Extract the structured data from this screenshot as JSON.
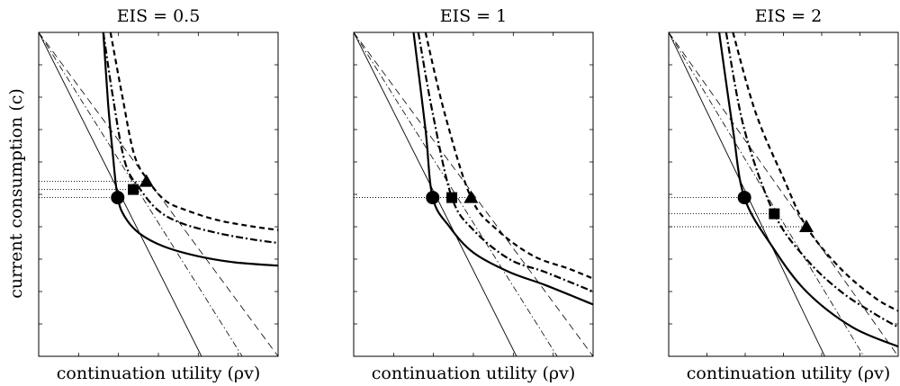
{
  "figure": {
    "ylabel": "current consumption (c)"
  },
  "chart_data": [
    {
      "type": "line",
      "title": "EIS = 0.5",
      "xlabel": "continuation utility (ρv)",
      "ylabel": "current consumption (c)",
      "xlim": [
        0,
        1
      ],
      "ylim": [
        0,
        1
      ],
      "grid": false,
      "indifference_curves": [
        {
          "style": "solid-thick",
          "points": [
            [
              0.27,
              1.0
            ],
            [
              0.29,
              0.78
            ],
            [
              0.31,
              0.62
            ],
            [
              0.33,
              0.49
            ],
            [
              0.36,
              0.43
            ],
            [
              0.42,
              0.38
            ],
            [
              0.52,
              0.34
            ],
            [
              0.66,
              0.31
            ],
            [
              0.82,
              0.29
            ],
            [
              1.0,
              0.28
            ]
          ]
        },
        {
          "style": "dashdot-thick",
          "points": [
            [
              0.27,
              1.0
            ],
            [
              0.31,
              0.8
            ],
            [
              0.36,
              0.6
            ],
            [
              0.42,
              0.52
            ],
            [
              0.5,
              0.45
            ],
            [
              0.6,
              0.41
            ],
            [
              0.75,
              0.38
            ],
            [
              0.9,
              0.36
            ],
            [
              1.0,
              0.35
            ]
          ]
        },
        {
          "style": "dashed-thick",
          "points": [
            [
              0.3,
              1.0
            ],
            [
              0.35,
              0.8
            ],
            [
              0.4,
              0.62
            ],
            [
              0.46,
              0.54
            ],
            [
              0.53,
              0.48
            ],
            [
              0.62,
              0.45
            ],
            [
              0.75,
              0.42
            ],
            [
              0.9,
              0.4
            ],
            [
              1.0,
              0.39
            ]
          ]
        }
      ],
      "budget_lines": [
        {
          "style": "solid-thin",
          "points": [
            [
              0.0,
              1.0
            ],
            [
              0.68,
              0.0
            ]
          ]
        },
        {
          "style": "dashdot-thin",
          "points": [
            [
              0.0,
              1.0
            ],
            [
              0.85,
              0.0
            ]
          ]
        },
        {
          "style": "dashed-thin",
          "points": [
            [
              0.0,
              1.0
            ],
            [
              1.0,
              0.0
            ]
          ]
        }
      ],
      "markers": [
        {
          "shape": "circle",
          "x": 0.33,
          "y": 0.49
        },
        {
          "shape": "square",
          "x": 0.395,
          "y": 0.515
        },
        {
          "shape": "triangle",
          "x": 0.45,
          "y": 0.54
        }
      ],
      "dotted_levels": [
        0.49,
        0.515,
        0.54
      ]
    },
    {
      "type": "line",
      "title": "EIS = 1",
      "xlabel": "continuation utility (ρv)",
      "xlim": [
        0,
        1
      ],
      "ylim": [
        0,
        1
      ],
      "grid": false,
      "indifference_curves": [
        {
          "style": "solid-thick",
          "points": [
            [
              0.25,
              1.0
            ],
            [
              0.3,
              0.7
            ],
            [
              0.33,
              0.49
            ],
            [
              0.4,
              0.4
            ],
            [
              0.5,
              0.32
            ],
            [
              0.65,
              0.26
            ],
            [
              0.8,
              0.22
            ],
            [
              1.0,
              0.16
            ]
          ]
        },
        {
          "style": "dashdot-thick",
          "points": [
            [
              0.27,
              1.0
            ],
            [
              0.33,
              0.75
            ],
            [
              0.41,
              0.49
            ],
            [
              0.5,
              0.39
            ],
            [
              0.65,
              0.3
            ],
            [
              0.8,
              0.26
            ],
            [
              1.0,
              0.2
            ]
          ]
        },
        {
          "style": "dashed-thick",
          "points": [
            [
              0.3,
              1.0
            ],
            [
              0.38,
              0.75
            ],
            [
              0.49,
              0.49
            ],
            [
              0.6,
              0.39
            ],
            [
              0.75,
              0.31
            ],
            [
              0.9,
              0.27
            ],
            [
              1.0,
              0.24
            ]
          ]
        }
      ],
      "budget_lines": [
        {
          "style": "solid-thin",
          "points": [
            [
              0.0,
              1.0
            ],
            [
              0.68,
              0.0
            ]
          ]
        },
        {
          "style": "dashdot-thin",
          "points": [
            [
              0.0,
              1.0
            ],
            [
              0.85,
              0.0
            ]
          ]
        },
        {
          "style": "dashed-thin",
          "points": [
            [
              0.0,
              1.0
            ],
            [
              1.0,
              0.0
            ]
          ]
        }
      ],
      "markers": [
        {
          "shape": "circle",
          "x": 0.33,
          "y": 0.49
        },
        {
          "shape": "square",
          "x": 0.41,
          "y": 0.49
        },
        {
          "shape": "triangle",
          "x": 0.49,
          "y": 0.49
        }
      ],
      "dotted_levels": [
        0.49
      ]
    },
    {
      "type": "line",
      "title": "EIS = 2",
      "xlabel": "continuation utility (ρv)",
      "xlim": [
        0,
        1
      ],
      "ylim": [
        0,
        1
      ],
      "grid": false,
      "indifference_curves": [
        {
          "style": "solid-thick",
          "points": [
            [
              0.22,
              1.0
            ],
            [
              0.28,
              0.7
            ],
            [
              0.33,
              0.49
            ],
            [
              0.45,
              0.34
            ],
            [
              0.6,
              0.2
            ],
            [
              0.8,
              0.09
            ],
            [
              1.0,
              0.03
            ]
          ]
        },
        {
          "style": "dashdot-thick",
          "points": [
            [
              0.25,
              1.0
            ],
            [
              0.33,
              0.7
            ],
            [
              0.46,
              0.44
            ],
            [
              0.6,
              0.3
            ],
            [
              0.75,
              0.2
            ],
            [
              0.9,
              0.13
            ],
            [
              1.0,
              0.09
            ]
          ]
        },
        {
          "style": "dashed-thick",
          "points": [
            [
              0.28,
              1.0
            ],
            [
              0.38,
              0.75
            ],
            [
              0.5,
              0.55
            ],
            [
              0.6,
              0.4
            ],
            [
              0.75,
              0.27
            ],
            [
              0.9,
              0.18
            ],
            [
              1.0,
              0.14
            ]
          ]
        }
      ],
      "budget_lines": [
        {
          "style": "solid-thin",
          "points": [
            [
              0.0,
              1.0
            ],
            [
              0.68,
              0.0
            ]
          ]
        },
        {
          "style": "dashdot-thin",
          "points": [
            [
              0.0,
              1.0
            ],
            [
              0.85,
              0.0
            ]
          ]
        },
        {
          "style": "dashed-thin",
          "points": [
            [
              0.0,
              1.0
            ],
            [
              1.0,
              0.0
            ]
          ]
        }
      ],
      "markers": [
        {
          "shape": "circle",
          "x": 0.33,
          "y": 0.49
        },
        {
          "shape": "square",
          "x": 0.46,
          "y": 0.44
        },
        {
          "shape": "triangle",
          "x": 0.6,
          "y": 0.4
        }
      ],
      "dotted_levels": [
        0.49,
        0.44,
        0.4
      ]
    }
  ]
}
